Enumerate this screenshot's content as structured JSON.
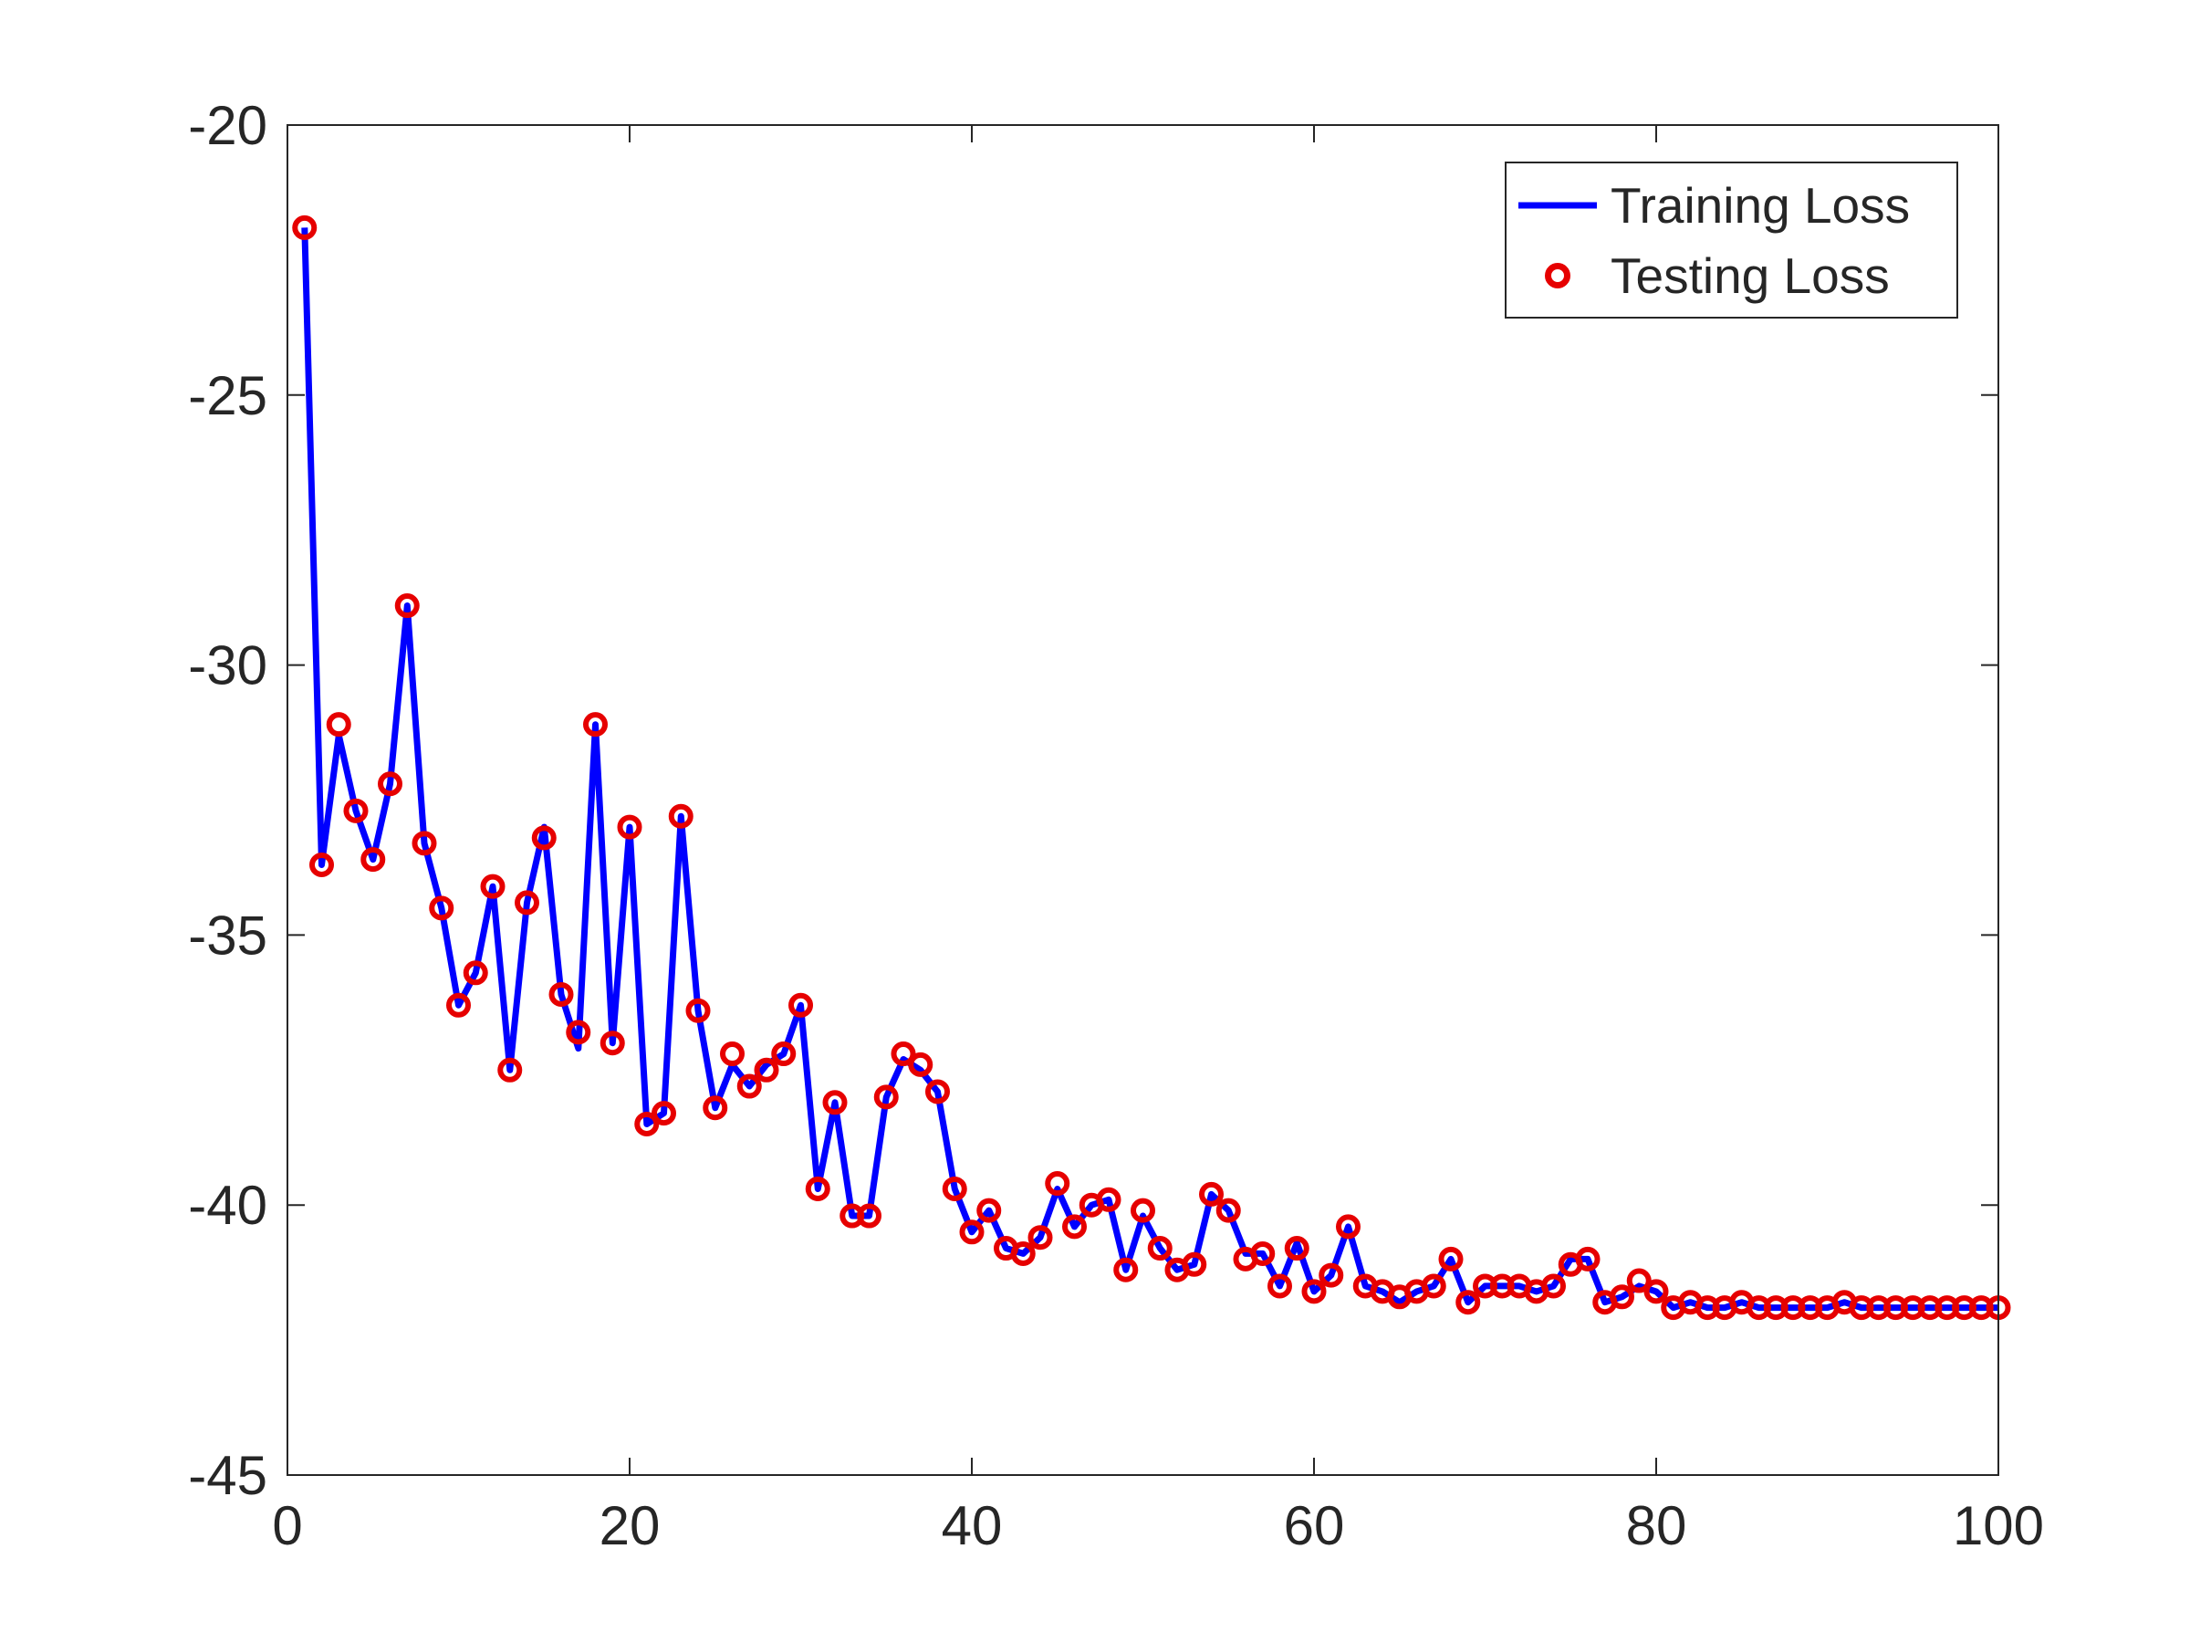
{
  "chart_data": {
    "type": "line",
    "title": "",
    "xlabel": "",
    "ylabel": "",
    "xlim": [
      0,
      100
    ],
    "ylim": [
      -45,
      -20
    ],
    "xticks": [
      0,
      20,
      40,
      60,
      80,
      100
    ],
    "yticks": [
      -20,
      -25,
      -30,
      -35,
      -40,
      -45
    ],
    "xtick_labels": [
      "0",
      "20",
      "40",
      "60",
      "80",
      "100"
    ],
    "ytick_labels": [
      "-20",
      "-25",
      "-30",
      "-35",
      "-40",
      "-45"
    ],
    "grid": false,
    "legend_position": "top-right",
    "x": [
      1,
      2,
      3,
      4,
      5,
      6,
      7,
      8,
      9,
      10,
      11,
      12,
      13,
      14,
      15,
      16,
      17,
      18,
      19,
      20,
      21,
      22,
      23,
      24,
      25,
      26,
      27,
      28,
      29,
      30,
      31,
      32,
      33,
      34,
      35,
      36,
      37,
      38,
      39,
      40,
      41,
      42,
      43,
      44,
      45,
      46,
      47,
      48,
      49,
      50,
      51,
      52,
      53,
      54,
      55,
      56,
      57,
      58,
      59,
      60,
      61,
      62,
      63,
      64,
      65,
      66,
      67,
      68,
      69,
      70,
      71,
      72,
      73,
      74,
      75,
      76,
      77,
      78,
      79,
      80,
      81,
      82,
      83,
      84,
      85,
      86,
      87,
      88,
      89,
      90,
      91,
      92,
      93,
      94,
      95,
      96,
      97,
      98,
      99,
      100
    ],
    "series": [
      {
        "name": "Training Loss",
        "style": "line",
        "color": "#0000FF",
        "values": [
          -21.9,
          -33.7,
          -31.3,
          -32.7,
          -33.6,
          -32.2,
          -28.9,
          -33.3,
          -34.5,
          -36.3,
          -35.7,
          -34.1,
          -37.5,
          -34.4,
          -33.0,
          -36.1,
          -37.1,
          -31.1,
          -37.0,
          -33.0,
          -38.5,
          -38.3,
          -32.8,
          -36.4,
          -38.2,
          -37.4,
          -37.8,
          -37.4,
          -37.2,
          -36.3,
          -39.7,
          -38.1,
          -40.2,
          -40.2,
          -38.0,
          -37.3,
          -37.5,
          -37.9,
          -39.7,
          -40.5,
          -40.1,
          -40.8,
          -40.9,
          -40.6,
          -39.7,
          -40.4,
          -40.0,
          -39.9,
          -41.2,
          -40.2,
          -40.8,
          -41.2,
          -41.1,
          -39.8,
          -40.1,
          -40.9,
          -40.9,
          -41.5,
          -40.7,
          -41.6,
          -41.3,
          -40.4,
          -41.5,
          -41.6,
          -41.8,
          -41.6,
          -41.5,
          -41.0,
          -41.8,
          -41.5,
          -41.5,
          -41.5,
          -41.6,
          -41.5,
          -41.0,
          -41.0,
          -41.8,
          -41.7,
          -41.5,
          -41.6,
          -41.9,
          -41.8,
          -41.9,
          -41.9,
          -41.8,
          -41.9,
          -41.9,
          -41.9,
          -41.9,
          -41.9,
          -41.8,
          -41.9,
          -41.9,
          -41.9,
          -41.9,
          -41.9,
          -41.9,
          -41.9,
          -41.9,
          -41.9
        ]
      },
      {
        "name": "Testing Loss",
        "style": "markers",
        "color": "#E60000",
        "values": [
          -21.9,
          -33.7,
          -31.1,
          -32.7,
          -33.6,
          -32.2,
          -28.9,
          -33.3,
          -34.5,
          -36.3,
          -35.7,
          -34.1,
          -37.5,
          -34.4,
          -33.2,
          -36.1,
          -36.8,
          -31.1,
          -37.0,
          -33.0,
          -38.5,
          -38.3,
          -32.8,
          -36.4,
          -38.2,
          -37.2,
          -37.8,
          -37.5,
          -37.2,
          -36.3,
          -39.7,
          -38.1,
          -40.2,
          -40.2,
          -38.0,
          -37.2,
          -37.4,
          -37.9,
          -39.7,
          -40.5,
          -40.1,
          -40.8,
          -40.9,
          -40.6,
          -39.6,
          -40.4,
          -40.0,
          -39.9,
          -41.2,
          -40.1,
          -40.8,
          -41.2,
          -41.1,
          -39.8,
          -40.1,
          -41.0,
          -40.9,
          -41.5,
          -40.8,
          -41.6,
          -41.3,
          -40.4,
          -41.5,
          -41.6,
          -41.7,
          -41.6,
          -41.5,
          -41.0,
          -41.8,
          -41.5,
          -41.5,
          -41.5,
          -41.6,
          -41.5,
          -41.1,
          -41.0,
          -41.8,
          -41.7,
          -41.4,
          -41.6,
          -41.9,
          -41.8,
          -41.9,
          -41.9,
          -41.8,
          -41.9,
          -41.9,
          -41.9,
          -41.9,
          -41.9,
          -41.8,
          -41.9,
          -41.9,
          -41.9,
          -41.9,
          -41.9,
          -41.9,
          -41.9,
          -41.9,
          -41.9
        ]
      }
    ]
  }
}
